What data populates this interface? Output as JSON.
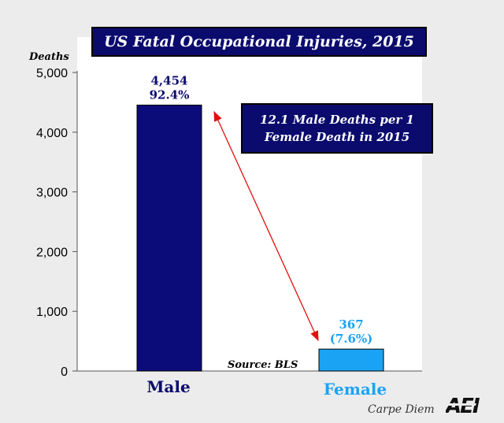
{
  "chart_data": {
    "type": "bar",
    "title": "US Fatal Occupational Injuries, 2015",
    "ylabel": "Deaths",
    "categories": [
      "Male",
      "Female"
    ],
    "values": [
      4454,
      367
    ],
    "percent_labels": [
      "92.4%",
      "(7.6%)"
    ],
    "value_labels": [
      "4,454",
      "367"
    ],
    "ylim": [
      0,
      5000
    ],
    "yticks": [
      "0",
      "1,000",
      "2,000",
      "3,000",
      "4,000",
      "5,000"
    ],
    "ytick_values": [
      0,
      1000,
      2000,
      3000,
      4000,
      5000
    ],
    "bar_colors": [
      "#0b0b7a",
      "#1aa3f5"
    ],
    "category_label_colors": [
      "#0b0b6e",
      "#1aa3f5"
    ],
    "annotation": [
      "12.1 Male Deaths per 1",
      "Female Death in 2015"
    ],
    "source": "Source: BLS",
    "grid": false
  },
  "credit": "Carpe Diem",
  "logo_text": "AEI"
}
